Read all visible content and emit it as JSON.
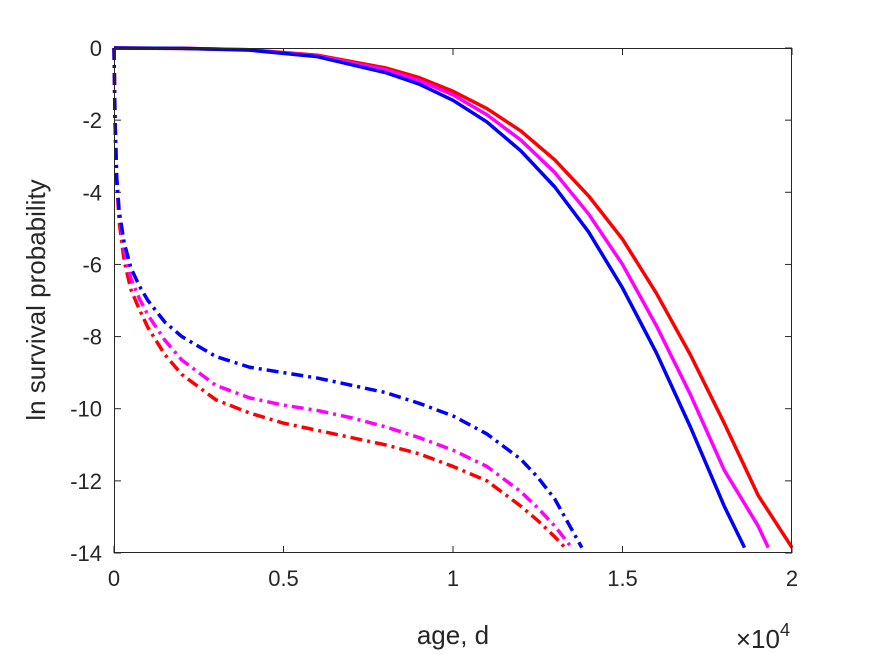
{
  "chart_data": {
    "type": "line",
    "xlabel": "age, d",
    "ylabel": "ln survival probability",
    "x_exponent_label": {
      "base": "×10",
      "exponent": "4"
    },
    "xlim": [
      0,
      20000
    ],
    "ylim": [
      -14,
      0
    ],
    "xticks": [
      0,
      5000,
      10000,
      15000,
      20000
    ],
    "xtick_labels": [
      "0",
      "0.5",
      "1",
      "1.5",
      "2"
    ],
    "yticks": [
      0,
      -2,
      -4,
      -6,
      -8,
      -10,
      -12,
      -14
    ],
    "ytick_labels": [
      "0",
      "-2",
      "-4",
      "-6",
      "-8",
      "-10",
      "-12",
      "-14"
    ],
    "grid": false,
    "legend": "none",
    "series": [
      {
        "style": "solid",
        "color": "#ff0000",
        "x": [
          0,
          2000,
          4000,
          6000,
          8000,
          9000,
          10000,
          11000,
          12000,
          13000,
          14000,
          15000,
          16000,
          17000,
          18000,
          19000,
          20000
        ],
        "y": [
          0,
          -0.01,
          -0.05,
          -0.2,
          -0.55,
          -0.82,
          -1.2,
          -1.68,
          -2.3,
          -3.1,
          -4.1,
          -5.3,
          -6.8,
          -8.5,
          -10.4,
          -12.4,
          -13.85
        ]
      },
      {
        "style": "solid",
        "color": "#ff00ff",
        "x": [
          0,
          2000,
          4000,
          6000,
          8000,
          9000,
          10000,
          11000,
          12000,
          13000,
          14000,
          15000,
          16000,
          17000,
          18000,
          19000,
          19300
        ],
        "y": [
          0,
          -0.01,
          -0.05,
          -0.22,
          -0.6,
          -0.9,
          -1.3,
          -1.85,
          -2.55,
          -3.45,
          -4.6,
          -6.0,
          -7.7,
          -9.6,
          -11.7,
          -13.25,
          -13.85
        ]
      },
      {
        "style": "solid",
        "color": "#0000ff",
        "x": [
          0,
          2000,
          4000,
          6000,
          8000,
          9000,
          10000,
          11000,
          12000,
          13000,
          14000,
          15000,
          16000,
          17000,
          18000,
          18600
        ],
        "y": [
          0,
          -0.01,
          -0.06,
          -0.24,
          -0.68,
          -1.0,
          -1.45,
          -2.05,
          -2.85,
          -3.85,
          -5.1,
          -6.65,
          -8.45,
          -10.5,
          -12.7,
          -13.85
        ]
      },
      {
        "style": "dashdot",
        "color": "#ff0000",
        "x": [
          0,
          30,
          80,
          150,
          300,
          500,
          750,
          1000,
          1500,
          2000,
          3000,
          4000,
          5000,
          6000,
          7000,
          8000,
          9000,
          10000,
          11000,
          12000,
          12500,
          13000,
          13300
        ],
        "y": [
          0,
          -2.0,
          -3.7,
          -4.8,
          -5.9,
          -6.7,
          -7.25,
          -7.75,
          -8.5,
          -9.05,
          -9.75,
          -10.12,
          -10.4,
          -10.6,
          -10.8,
          -11.0,
          -11.25,
          -11.6,
          -12.0,
          -12.7,
          -13.1,
          -13.55,
          -13.85
        ]
      },
      {
        "style": "dashdot",
        "color": "#ff00ff",
        "x": [
          0,
          30,
          80,
          150,
          300,
          500,
          750,
          1000,
          1500,
          2000,
          3000,
          4000,
          5000,
          6000,
          7000,
          8000,
          9000,
          10000,
          11000,
          12000,
          12500,
          13000,
          13500
        ],
        "y": [
          0,
          -2.0,
          -3.6,
          -4.6,
          -5.6,
          -6.4,
          -6.95,
          -7.4,
          -8.1,
          -8.65,
          -9.35,
          -9.7,
          -9.9,
          -10.05,
          -10.25,
          -10.5,
          -10.8,
          -11.15,
          -11.6,
          -12.3,
          -12.75,
          -13.25,
          -13.85
        ]
      },
      {
        "style": "dashdot",
        "color": "#0000ff",
        "x": [
          0,
          30,
          80,
          150,
          300,
          500,
          750,
          1000,
          1500,
          2000,
          3000,
          4000,
          5000,
          6000,
          7000,
          8000,
          9000,
          10000,
          11000,
          12000,
          12500,
          13000,
          13800
        ],
        "y": [
          0,
          -2.0,
          -3.6,
          -4.5,
          -5.4,
          -6.1,
          -6.6,
          -7.0,
          -7.6,
          -8.0,
          -8.55,
          -8.85,
          -9.0,
          -9.15,
          -9.35,
          -9.55,
          -9.85,
          -10.2,
          -10.7,
          -11.4,
          -11.9,
          -12.5,
          -13.85
        ]
      }
    ]
  }
}
